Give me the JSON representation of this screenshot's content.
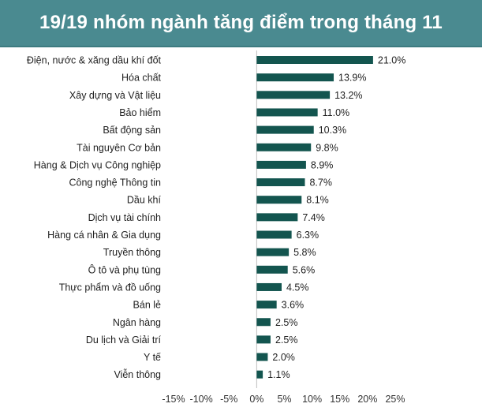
{
  "title": "19/19 nhóm ngành tăng điểm trong tháng 11",
  "colors": {
    "title_bg": "#4a8a90",
    "bar": "#13554f",
    "axis": "#bfbfbf"
  },
  "chart_data": {
    "type": "bar",
    "orientation": "horizontal",
    "title": "19/19 nhóm ngành tăng điểm trong tháng 11",
    "xlabel": "",
    "ylabel": "",
    "xlim": [
      -15,
      25
    ],
    "x_ticks": [
      -15,
      -10,
      -5,
      0,
      5,
      10,
      15,
      20,
      25
    ],
    "x_tick_labels": [
      "-15%",
      "-10%",
      "-5%",
      "0%",
      "5%",
      "10%",
      "15%",
      "20%",
      "25%"
    ],
    "grid": false,
    "legend": "none",
    "categories": [
      "Điện, nước & xăng dầu khí đốt",
      "Hóa chất",
      "Xây dựng và Vật liệu",
      "Bảo hiểm",
      "Bất động sản",
      "Tài nguyên Cơ bản",
      "Hàng & Dịch vụ Công nghiệp",
      "Công nghệ Thông tin",
      "Dầu khí",
      "Dịch vụ tài chính",
      "Hàng cá nhân & Gia dụng",
      "Truyền thông",
      "Ô tô và phụ tùng",
      "Thực phẩm và đồ uống",
      "Bán lẻ",
      "Ngân hàng",
      "Du lịch và Giải trí",
      "Y tế",
      "Viễn thông"
    ],
    "values": [
      21.0,
      13.9,
      13.2,
      11.0,
      10.3,
      9.8,
      8.9,
      8.7,
      8.1,
      7.4,
      6.3,
      5.8,
      5.6,
      4.5,
      3.6,
      2.5,
      2.5,
      2.0,
      1.1
    ],
    "value_labels": [
      "21.0%",
      "13.9%",
      "13.2%",
      "11.0%",
      "10.3%",
      "9.8%",
      "8.9%",
      "8.7%",
      "8.1%",
      "7.4%",
      "6.3%",
      "5.8%",
      "5.6%",
      "4.5%",
      "3.6%",
      "2.5%",
      "2.5%",
      "2.0%",
      "1.1%"
    ]
  }
}
